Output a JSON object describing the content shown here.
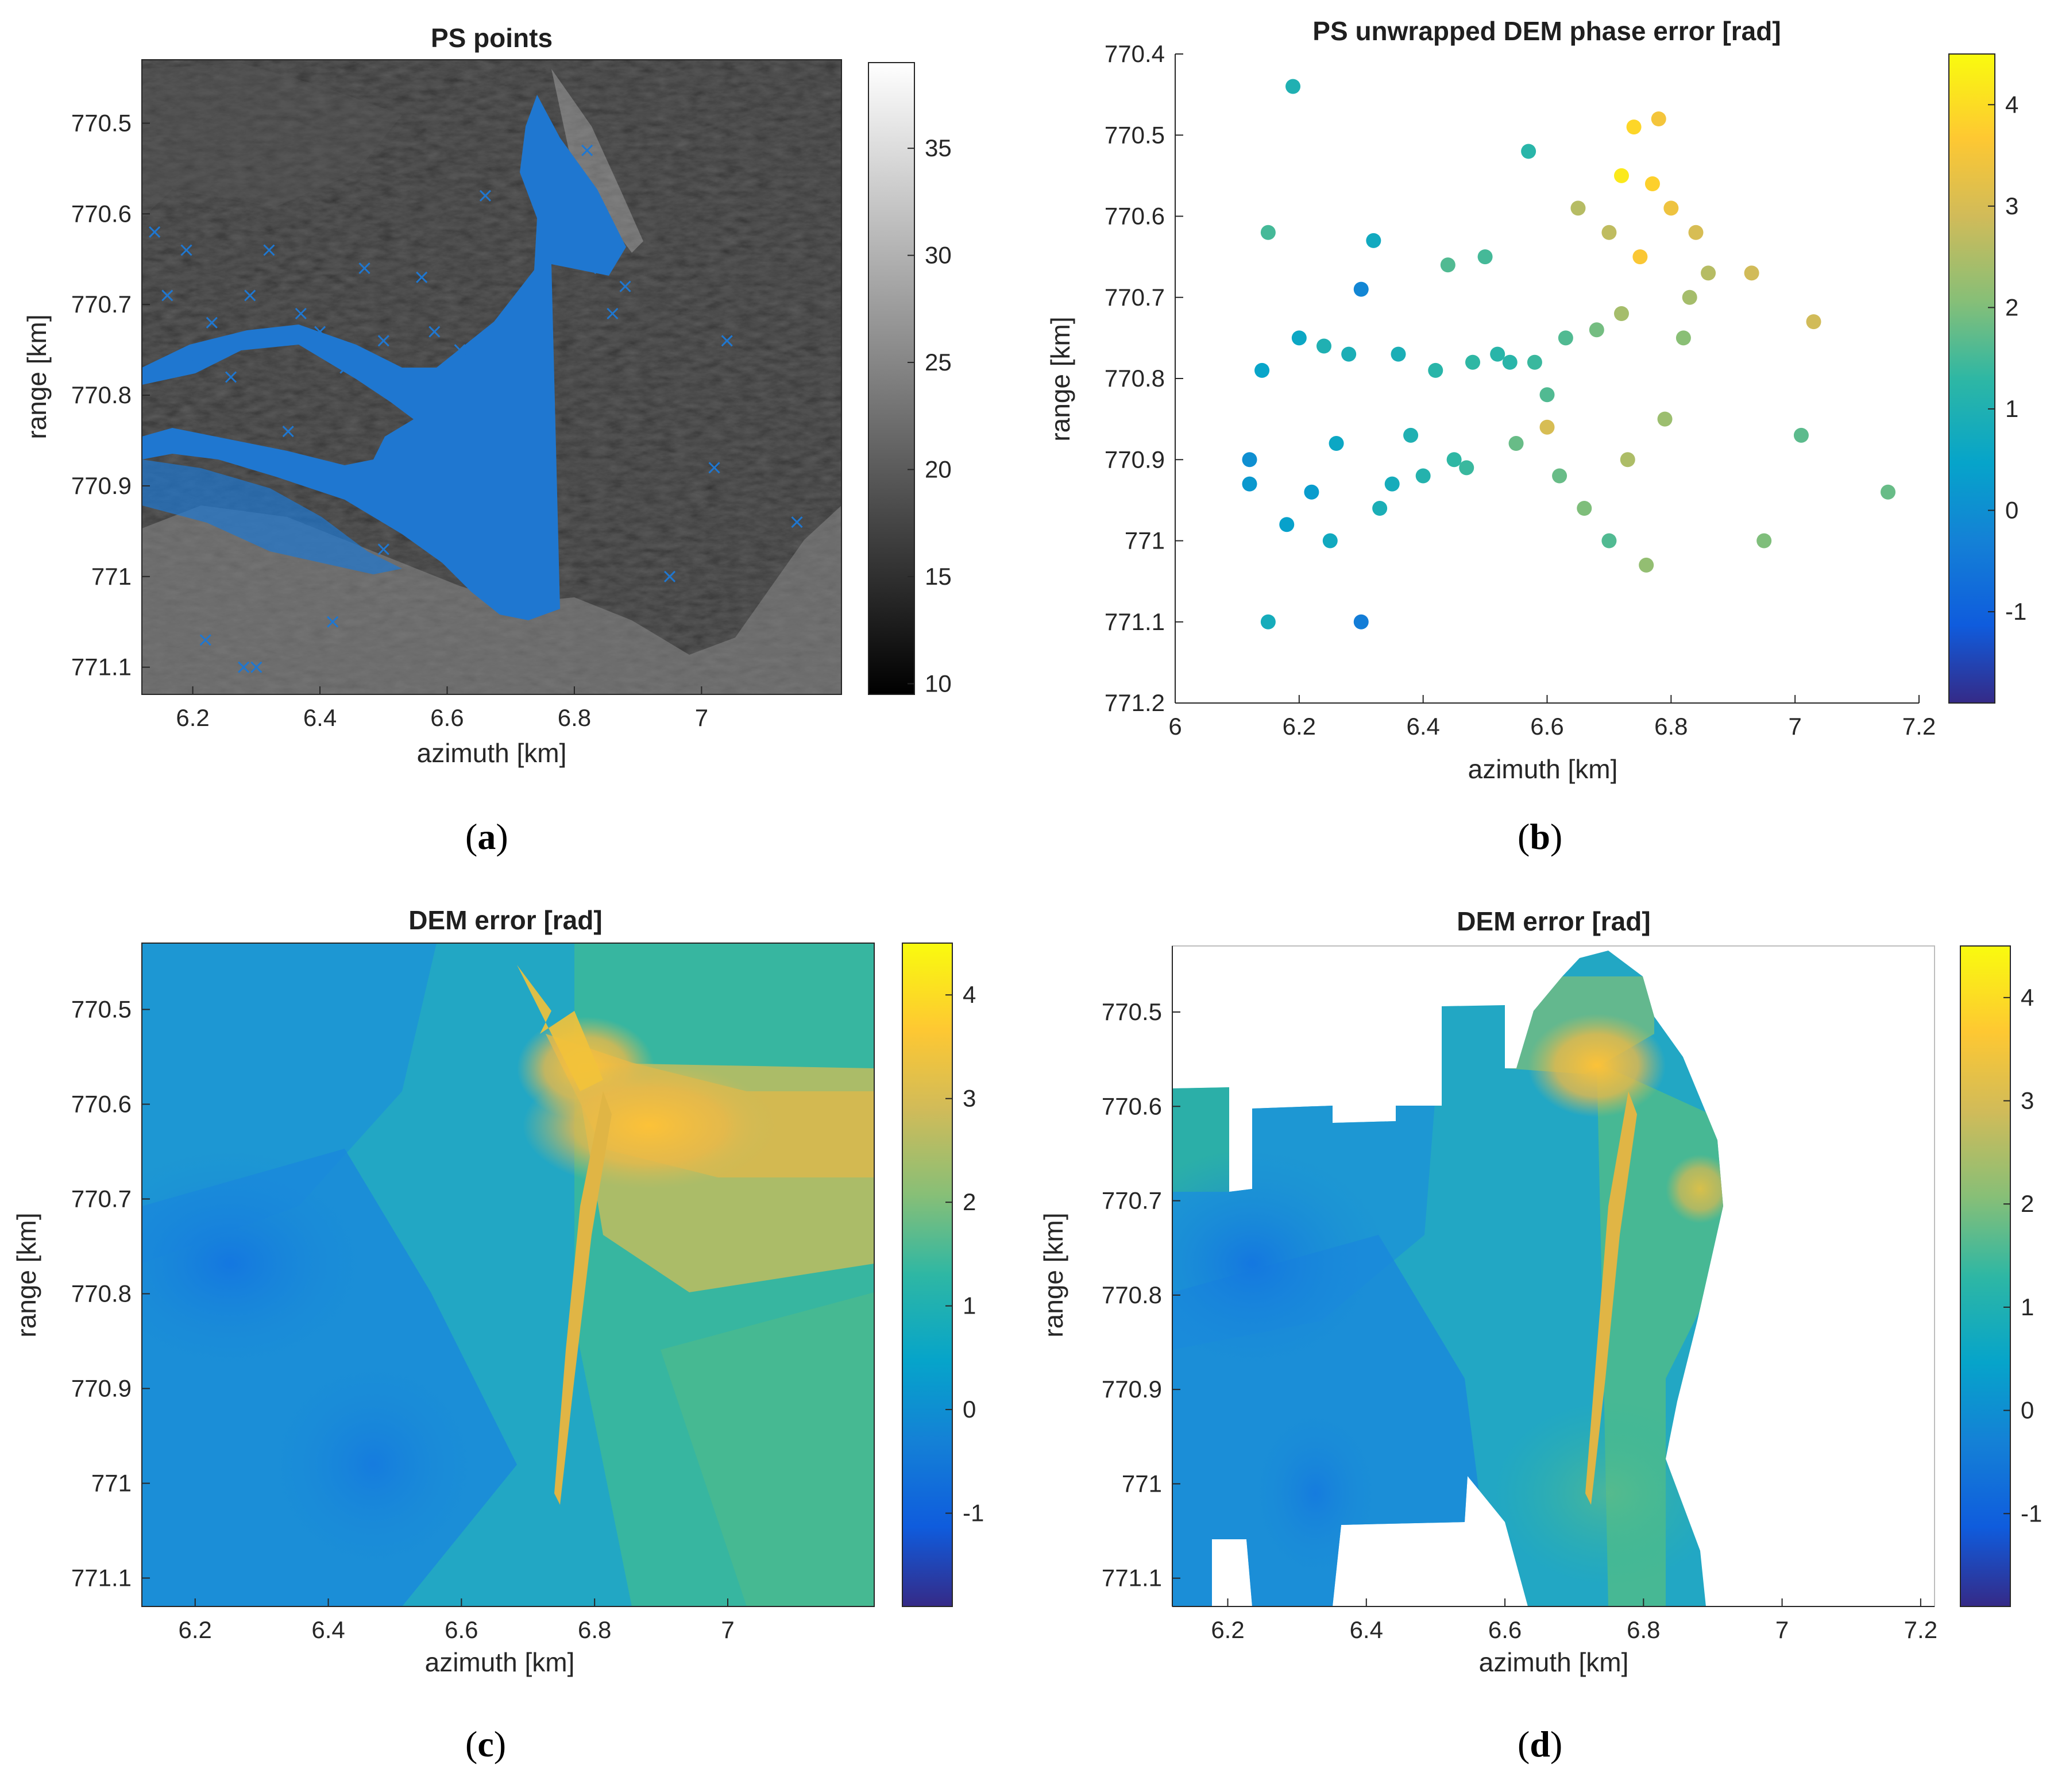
{
  "chart_data": [
    {
      "id": "a",
      "type": "scatter",
      "title": "PS points",
      "xlabel": "azimuth [km]",
      "ylabel": "range [km]",
      "xlim": [
        6.12,
        7.22
      ],
      "ylim": [
        770.43,
        771.13
      ],
      "y_reversed": true,
      "xticks": [
        6.2,
        6.4,
        6.6,
        6.8,
        7
      ],
      "xtick_labels": [
        "6.2",
        "6.4",
        "6.6",
        "6.8",
        "7"
      ],
      "yticks": [
        770.5,
        770.6,
        770.7,
        770.8,
        770.9,
        771,
        771.1
      ],
      "ytick_labels": [
        "770.5",
        "770.6",
        "770.7",
        "770.8",
        "770.9",
        "771",
        "771.1"
      ],
      "background": "grayscale amplitude image",
      "marker": "x",
      "marker_color": "#1f77d0",
      "colorbar": {
        "colormap": "gray",
        "range": [
          9.5,
          39
        ],
        "ticks": [
          10,
          15,
          20,
          25,
          30,
          35
        ],
        "tick_labels": [
          "10",
          "15",
          "20",
          "25",
          "30",
          "35"
        ]
      },
      "series": [
        {
          "x": [
            6.14,
            6.16,
            6.19,
            6.2,
            6.23,
            6.26,
            6.29,
            6.32,
            6.35,
            6.37,
            6.4,
            6.44,
            6.47,
            6.5,
            6.53,
            6.56,
            6.58,
            6.62,
            6.66,
            6.74,
            6.77,
            6.82,
            6.84,
            6.86,
            6.88,
            6.95,
            7.02,
            7.04,
            7.15,
            6.31,
            6.15,
            6.22,
            6.28,
            6.42,
            6.5,
            6.3
          ],
          "y": [
            770.62,
            770.69,
            770.64,
            770.76,
            770.72,
            770.78,
            770.69,
            770.64,
            770.84,
            770.71,
            770.73,
            770.77,
            770.66,
            770.74,
            770.79,
            770.67,
            770.73,
            770.75,
            770.58,
            770.54,
            770.53,
            770.53,
            770.66,
            770.71,
            770.68,
            771.0,
            770.88,
            770.74,
            770.94,
            770.87,
            770.85,
            771.07,
            771.1,
            771.05,
            770.97,
            771.1
          ]
        }
      ]
    },
    {
      "id": "b",
      "type": "scatter",
      "title": "PS unwrapped DEM phase error [rad]",
      "xlabel": "azimuth [km]",
      "ylabel": "range [km]",
      "xlim": [
        6,
        7.2
      ],
      "ylim": [
        770.4,
        771.2
      ],
      "y_reversed": true,
      "xticks": [
        6,
        6.2,
        6.4,
        6.6,
        6.8,
        7,
        7.2
      ],
      "xtick_labels": [
        "6",
        "6.2",
        "6.4",
        "6.6",
        "6.8",
        "7",
        "7.2"
      ],
      "yticks": [
        770.4,
        770.5,
        770.6,
        770.7,
        770.8,
        770.9,
        771,
        771.1,
        771.2
      ],
      "ytick_labels": [
        "770.4",
        "770.5",
        "770.6",
        "770.7",
        "770.8",
        "770.9",
        "771",
        "771.1",
        "771.2"
      ],
      "colorbar": {
        "colormap": "parula",
        "range": [
          -1.9,
          4.5
        ],
        "ticks": [
          -1,
          0,
          1,
          2,
          3,
          4
        ],
        "tick_labels": [
          "-1",
          "0",
          "1",
          "2",
          "3",
          "4"
        ]
      },
      "series": [
        {
          "x": [
            6.19,
            6.15,
            6.32,
            6.3,
            6.44,
            6.5,
            6.57,
            6.65,
            6.93,
            7.03,
            7.01,
            7.15,
            6.95,
            6.15,
            6.3,
            6.12,
            6.14,
            6.2,
            6.24,
            6.28,
            6.36,
            6.42,
            6.48,
            6.52,
            6.58,
            6.63,
            6.68,
            6.72,
            6.75,
            6.77,
            6.8,
            6.84,
            6.86,
            6.72,
            6.74,
            6.78,
            6.7,
            6.6,
            6.55,
            6.45,
            6.38,
            6.26,
            6.22,
            6.18,
            6.12,
            6.25,
            6.33,
            6.4,
            6.47,
            6.62,
            6.66,
            6.7,
            6.76,
            6.73,
            6.79,
            6.82,
            6.83,
            6.6,
            6.54,
            6.35
          ],
          "y": [
            770.44,
            770.62,
            770.63,
            770.69,
            770.66,
            770.65,
            770.52,
            770.59,
            770.67,
            770.73,
            770.87,
            770.94,
            771.0,
            771.1,
            771.1,
            770.93,
            770.79,
            770.75,
            770.76,
            770.77,
            770.77,
            770.79,
            770.78,
            770.77,
            770.78,
            770.75,
            770.74,
            770.72,
            770.65,
            770.56,
            770.59,
            770.62,
            770.67,
            770.55,
            770.49,
            770.48,
            770.62,
            770.82,
            770.88,
            770.9,
            770.87,
            770.88,
            770.94,
            770.98,
            770.9,
            771.0,
            770.96,
            770.92,
            770.91,
            770.92,
            770.96,
            771.0,
            771.03,
            770.9,
            770.85,
            770.75,
            770.7,
            770.86,
            770.78,
            770.93
          ],
          "c": [
            1.0,
            1.5,
            0.7,
            -0.2,
            1.6,
            1.5,
            1.2,
            2.6,
            2.9,
            2.9,
            1.7,
            1.8,
            2.0,
            0.8,
            -0.4,
            0.2,
            0.5,
            0.6,
            1.0,
            0.9,
            0.9,
            1.2,
            1.3,
            1.2,
            1.4,
            1.6,
            1.9,
            2.4,
            3.6,
            3.8,
            3.4,
            3.0,
            2.6,
            4.2,
            3.9,
            3.5,
            2.7,
            1.6,
            1.8,
            1.3,
            1.0,
            0.6,
            0.3,
            0.4,
            0.0,
            0.7,
            0.9,
            1.1,
            1.4,
            1.8,
            2.0,
            1.6,
            2.2,
            2.5,
            2.3,
            2.1,
            2.4,
            3.0,
            1.2,
            0.8
          ]
        }
      ]
    },
    {
      "id": "c",
      "type": "heatmap",
      "title": "DEM error [rad]",
      "xlabel": "azimuth [km]",
      "ylabel": "range [km]",
      "xlim": [
        6.12,
        7.22
      ],
      "ylim": [
        770.43,
        771.13
      ],
      "y_reversed": true,
      "xticks": [
        6.2,
        6.4,
        6.6,
        6.8,
        7
      ],
      "xtick_labels": [
        "6.2",
        "6.4",
        "6.6",
        "6.8",
        "7"
      ],
      "yticks": [
        770.5,
        770.6,
        770.7,
        770.8,
        770.9,
        771,
        771.1
      ],
      "ytick_labels": [
        "770.5",
        "770.6",
        "770.7",
        "770.8",
        "770.9",
        "771",
        "771.1"
      ],
      "colorbar": {
        "colormap": "parula",
        "range": [
          -1.9,
          4.5
        ],
        "ticks": [
          -1,
          0,
          1,
          2,
          3,
          4
        ],
        "tick_labels": [
          "-1",
          "0",
          "1",
          "2",
          "3",
          "4"
        ]
      },
      "masked": false
    },
    {
      "id": "d",
      "type": "heatmap",
      "title": "DEM error [rad]",
      "xlabel": "azimuth [km]",
      "ylabel": "range [km]",
      "xlim": [
        6.12,
        7.22
      ],
      "ylim": [
        770.43,
        771.13
      ],
      "y_reversed": true,
      "xticks": [
        6.2,
        6.4,
        6.6,
        6.8,
        7,
        7.2
      ],
      "xtick_labels": [
        "6.2",
        "6.4",
        "6.6",
        "6.8",
        "7",
        "7.2"
      ],
      "yticks": [
        770.5,
        770.6,
        770.7,
        770.8,
        770.9,
        771,
        771.1
      ],
      "ytick_labels": [
        "770.5",
        "770.6",
        "770.7",
        "770.8",
        "770.9",
        "771",
        "771.1"
      ],
      "colorbar": {
        "colormap": "parula",
        "range": [
          -1.9,
          4.5
        ],
        "ticks": [
          -1,
          0,
          1,
          2,
          3,
          4
        ],
        "tick_labels": [
          "-1",
          "0",
          "1",
          "2",
          "3",
          "4"
        ]
      },
      "masked": true
    }
  ],
  "panel_labels": [
    {
      "open": "(",
      "letter": "a",
      "close": ")"
    },
    {
      "open": "(",
      "letter": "b",
      "close": ")"
    },
    {
      "open": "(",
      "letter": "c",
      "close": ")"
    },
    {
      "open": "(",
      "letter": "d",
      "close": ")"
    }
  ]
}
